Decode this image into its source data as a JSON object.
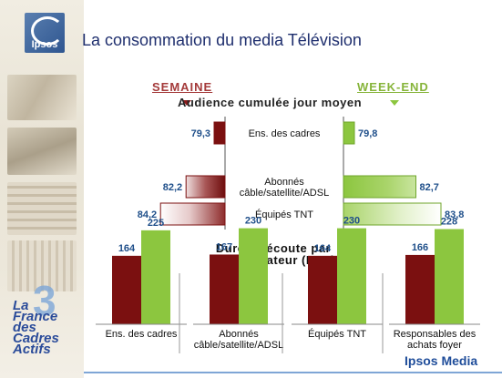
{
  "header": {
    "logo_text": "Ipsos",
    "title": "La consommation du media Télévision"
  },
  "sidebar": {
    "logo_line1": "La France",
    "logo_line2": "des Cadres",
    "logo_line3": "Actifs"
  },
  "footer": {
    "brand": "Ipsos Media"
  },
  "colors": {
    "semaine": "#7b1010",
    "weekend": "#8cc63f",
    "values": "#1f4f8a",
    "title": "#1f2f6e"
  },
  "chart_data": [
    {
      "type": "bar",
      "orientation": "horizontal",
      "title": "Audience cumulée jour moyen",
      "column_headers": [
        "SEMAINE",
        "WEEK-END"
      ],
      "categories": [
        "Ens. des cadres",
        "Abonnés câble/satellite/ADSL",
        "Équipés TNT"
      ],
      "category_lines": [
        [
          "Ens. des cadres"
        ],
        [
          "Abonnés",
          "câble/satellite/ADSL"
        ],
        [
          "Équipés TNT"
        ]
      ],
      "series": [
        {
          "name": "SEMAINE",
          "values": [
            79.3,
            82.2,
            84.2
          ]
        },
        {
          "name": "WEEK-END",
          "values": [
            79.8,
            82.7,
            83.8
          ]
        }
      ],
      "value_labels": {
        "SEMAINE": [
          "79,3",
          "82,2",
          "84,2"
        ],
        "WEEK-END": [
          "79,8",
          "82,7",
          "83,8"
        ]
      },
      "xlim": [
        0,
        100
      ]
    },
    {
      "type": "bar",
      "title": "Durée d'écoute par téléspectateur (DET)",
      "title_lines": [
        "Durée d'écoute par",
        "téléspectateur (DET)"
      ],
      "categories": [
        "Ens. des cadres",
        "Abonnés câble/satellite/ADSL",
        "Équipés TNT",
        "Responsables des achats foyer"
      ],
      "category_lines": [
        [
          "Ens. des cadres"
        ],
        [
          "Abonnés",
          "câble/satellite/ADSL"
        ],
        [
          "Équipés TNT"
        ],
        [
          "Responsables des",
          "achats foyer"
        ]
      ],
      "series": [
        {
          "name": "SEMAINE",
          "values": [
            164,
            167,
            164,
            166
          ]
        },
        {
          "name": "WEEK-END",
          "values": [
            225,
            230,
            230,
            228
          ]
        }
      ],
      "ylim": [
        0,
        260
      ]
    }
  ]
}
